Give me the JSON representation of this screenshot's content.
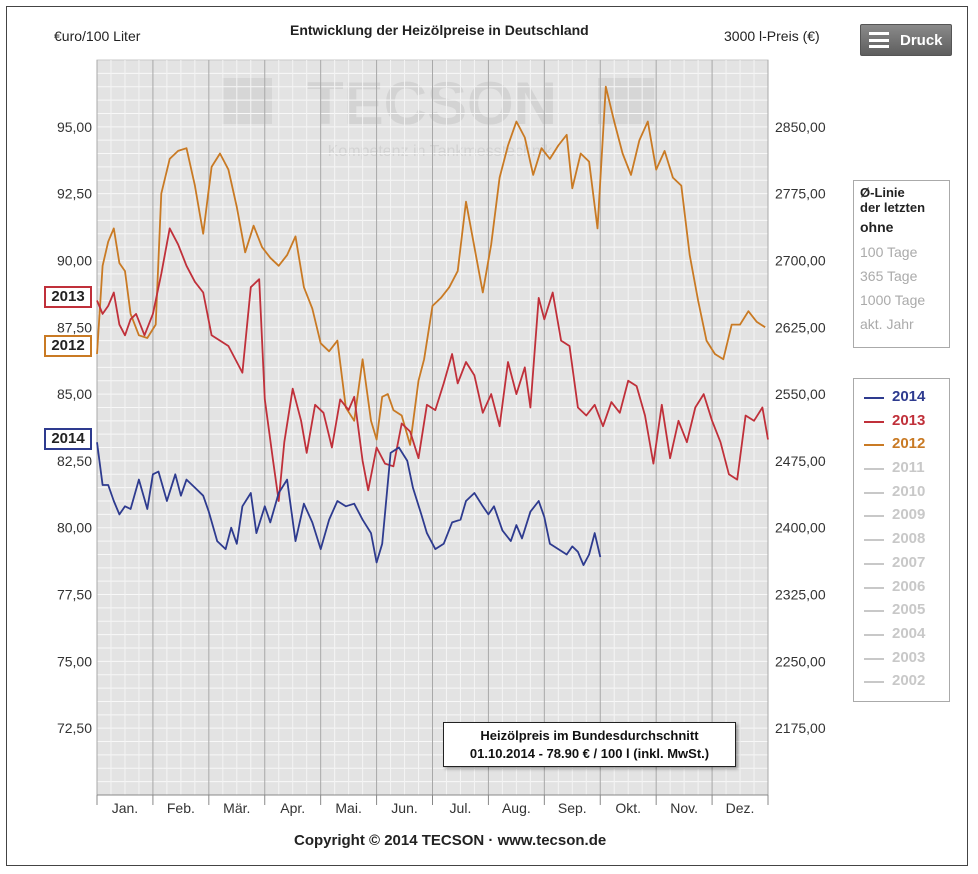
{
  "header": {
    "left_axis_label": "€uro/100 Liter",
    "title": "Entwicklung der Heizölpreise in Deutschland",
    "right_axis_label": "3000 l-Preis (€)",
    "print_button": "Druck"
  },
  "watermark": {
    "logo": "TECSON",
    "tagline": "Kompetenz in Tankmesstechnik"
  },
  "year_markers": {
    "y2013": "2013",
    "y2012": "2012",
    "y2014": "2014"
  },
  "average_panel": {
    "heading_line1": "Ø-Linie",
    "heading_line2": "der letzten",
    "options": [
      "ohne",
      "100 Tage",
      "365 Tage",
      "1000 Tage",
      "akt. Jahr"
    ],
    "selected": "ohne"
  },
  "legend": [
    {
      "year": "2014",
      "color": "#2e3b8f",
      "active": true
    },
    {
      "year": "2013",
      "color": "#c0303a",
      "active": true
    },
    {
      "year": "2012",
      "color": "#c97a24",
      "active": true
    },
    {
      "year": "2011",
      "color": "#c8c8c8",
      "active": false
    },
    {
      "year": "2010",
      "color": "#c8c8c8",
      "active": false
    },
    {
      "year": "2009",
      "color": "#c8c8c8",
      "active": false
    },
    {
      "year": "2008",
      "color": "#c8c8c8",
      "active": false
    },
    {
      "year": "2007",
      "color": "#c8c8c8",
      "active": false
    },
    {
      "year": "2006",
      "color": "#c8c8c8",
      "active": false
    },
    {
      "year": "2005",
      "color": "#c8c8c8",
      "active": false
    },
    {
      "year": "2004",
      "color": "#c8c8c8",
      "active": false
    },
    {
      "year": "2003",
      "color": "#c8c8c8",
      "active": false
    },
    {
      "year": "2002",
      "color": "#c8c8c8",
      "active": false
    }
  ],
  "info_box": {
    "line1": "Heizölpreis im Bundesdurchschnitt",
    "line2": "01.10.2014 - 78.90 € / 100 l (inkl. MwSt.)"
  },
  "footer": {
    "copyright": "Copyright © 2014 TECSON · www.tecson.de"
  },
  "chart_data": {
    "type": "line",
    "title": "Entwicklung der Heizölpreise in Deutschland",
    "ylabel": "€uro/100 Liter",
    "y2label": "3000 l-Preis (€)",
    "ylim": [
      70,
      97.5
    ],
    "y_ticks": [
      72.5,
      75,
      77.5,
      80,
      82.5,
      85,
      87.5,
      90,
      92.5,
      95
    ],
    "y_tick_labels": [
      "72,50",
      "75,00",
      "77,50",
      "80,00",
      "82,50",
      "85,00",
      "87,50",
      "90,00",
      "92,50",
      "95,00"
    ],
    "y2_tick_labels": [
      "2175,00",
      "2250,00",
      "2325,00",
      "2400,00",
      "2475,00",
      "2550,00",
      "2625,00",
      "2700,00",
      "2775,00",
      "2850,00"
    ],
    "categories": [
      "Jan.",
      "Feb.",
      "Mär.",
      "Apr.",
      "Mai.",
      "Jun.",
      "Jul.",
      "Aug.",
      "Sep.",
      "Okt.",
      "Nov.",
      "Dez."
    ],
    "xlim": [
      0,
      12
    ],
    "grid": true,
    "series": [
      {
        "name": "2014",
        "color": "#2e3b8f",
        "x": [
          0,
          0.1,
          0.2,
          0.3,
          0.4,
          0.5,
          0.6,
          0.75,
          0.9,
          1.0,
          1.1,
          1.25,
          1.4,
          1.5,
          1.6,
          1.75,
          1.9,
          2.0,
          2.15,
          2.3,
          2.4,
          2.5,
          2.6,
          2.75,
          2.85,
          3.0,
          3.1,
          3.25,
          3.4,
          3.55,
          3.7,
          3.85,
          4.0,
          4.15,
          4.3,
          4.45,
          4.6,
          4.75,
          4.9,
          5.0,
          5.1,
          5.25,
          5.4,
          5.55,
          5.65,
          5.8,
          5.9,
          6.05,
          6.2,
          6.35,
          6.5,
          6.6,
          6.75,
          6.9,
          7.0,
          7.1,
          7.25,
          7.4,
          7.5,
          7.6,
          7.75,
          7.9,
          8.0,
          8.1,
          8.25,
          8.4,
          8.5,
          8.6,
          8.7,
          8.8,
          8.9,
          9.0
        ],
        "values": [
          83.2,
          81.6,
          81.6,
          81.0,
          80.5,
          80.8,
          80.7,
          81.8,
          80.7,
          82.0,
          82.1,
          81.0,
          82.0,
          81.2,
          81.8,
          81.5,
          81.2,
          80.6,
          79.5,
          79.2,
          80.0,
          79.4,
          80.8,
          81.3,
          79.8,
          80.8,
          80.2,
          81.3,
          81.8,
          79.5,
          80.9,
          80.2,
          79.2,
          80.3,
          81.0,
          80.8,
          80.9,
          80.3,
          79.8,
          78.7,
          79.4,
          82.8,
          83.0,
          82.5,
          81.5,
          80.5,
          79.8,
          79.2,
          79.4,
          80.2,
          80.3,
          81.0,
          81.3,
          80.8,
          80.5,
          80.8,
          79.9,
          79.5,
          80.1,
          79.6,
          80.6,
          81.0,
          80.4,
          79.4,
          79.2,
          79.0,
          79.3,
          79.1,
          78.6,
          79.0,
          79.8,
          78.9
        ]
      },
      {
        "name": "2013",
        "color": "#c0303a",
        "x": [
          0,
          0.1,
          0.2,
          0.3,
          0.4,
          0.5,
          0.6,
          0.7,
          0.85,
          1.0,
          1.15,
          1.3,
          1.45,
          1.6,
          1.75,
          1.9,
          2.05,
          2.2,
          2.35,
          2.5,
          2.6,
          2.75,
          2.9,
          3.0,
          3.15,
          3.25,
          3.35,
          3.5,
          3.65,
          3.75,
          3.9,
          4.05,
          4.2,
          4.35,
          4.5,
          4.6,
          4.75,
          4.85,
          5.0,
          5.15,
          5.3,
          5.45,
          5.6,
          5.75,
          5.9,
          6.05,
          6.2,
          6.35,
          6.45,
          6.6,
          6.75,
          6.9,
          7.05,
          7.2,
          7.35,
          7.5,
          7.65,
          7.75,
          7.9,
          8.0,
          8.15,
          8.3,
          8.45,
          8.6,
          8.75,
          8.9,
          9.05,
          9.2,
          9.35,
          9.5,
          9.65,
          9.8,
          9.95,
          10.1,
          10.25,
          10.4,
          10.55,
          10.7,
          10.85,
          11.0,
          11.15,
          11.3,
          11.45,
          11.6,
          11.75,
          11.9,
          12.0
        ],
        "values": [
          88.5,
          88.0,
          88.3,
          88.8,
          87.6,
          87.2,
          87.8,
          88.0,
          87.2,
          88.0,
          89.5,
          91.2,
          90.6,
          89.8,
          89.2,
          88.8,
          87.2,
          87.0,
          86.8,
          86.2,
          85.8,
          89.0,
          89.3,
          84.8,
          82.5,
          81.0,
          83.2,
          85.2,
          84.0,
          82.8,
          84.6,
          84.3,
          83.0,
          84.8,
          84.4,
          84.9,
          82.5,
          81.4,
          83.0,
          82.4,
          82.3,
          83.9,
          83.6,
          82.6,
          84.6,
          84.4,
          85.4,
          86.5,
          85.4,
          86.2,
          85.7,
          84.3,
          85.0,
          83.8,
          86.2,
          85.0,
          86.0,
          84.5,
          88.6,
          87.8,
          88.8,
          87.0,
          86.8,
          84.5,
          84.2,
          84.6,
          83.8,
          84.7,
          84.3,
          85.5,
          85.3,
          84.2,
          82.4,
          84.6,
          82.6,
          84.0,
          83.2,
          84.5,
          85.0,
          84.0,
          83.2,
          82.0,
          81.8,
          84.2,
          84.0,
          84.5,
          83.3
        ]
      },
      {
        "name": "2012",
        "color": "#c97a24",
        "x": [
          0,
          0.1,
          0.2,
          0.3,
          0.4,
          0.5,
          0.6,
          0.75,
          0.9,
          1.05,
          1.15,
          1.3,
          1.45,
          1.6,
          1.75,
          1.9,
          2.05,
          2.2,
          2.35,
          2.5,
          2.65,
          2.8,
          2.95,
          3.1,
          3.25,
          3.4,
          3.55,
          3.7,
          3.85,
          4.0,
          4.15,
          4.3,
          4.45,
          4.6,
          4.75,
          4.9,
          5.0,
          5.1,
          5.2,
          5.3,
          5.45,
          5.6,
          5.75,
          5.85,
          6.0,
          6.15,
          6.3,
          6.45,
          6.6,
          6.75,
          6.9,
          7.05,
          7.2,
          7.35,
          7.5,
          7.65,
          7.8,
          7.95,
          8.1,
          8.25,
          8.4,
          8.5,
          8.65,
          8.8,
          8.95,
          9.1,
          9.25,
          9.4,
          9.55,
          9.7,
          9.85,
          10.0,
          10.15,
          10.3,
          10.45,
          10.6,
          10.75,
          10.9,
          11.05,
          11.2,
          11.35,
          11.5,
          11.65,
          11.8,
          11.95
        ],
        "values": [
          86.5,
          89.8,
          90.7,
          91.2,
          89.9,
          89.6,
          88.0,
          87.2,
          87.1,
          87.6,
          92.5,
          93.8,
          94.1,
          94.2,
          92.8,
          91.0,
          93.5,
          94.0,
          93.4,
          92.0,
          90.3,
          91.3,
          90.5,
          90.1,
          89.8,
          90.2,
          90.9,
          89.0,
          88.2,
          86.9,
          86.6,
          87.0,
          84.5,
          84.0,
          86.3,
          84.0,
          83.3,
          84.9,
          85.0,
          84.4,
          84.2,
          83.1,
          85.5,
          86.3,
          88.3,
          88.6,
          89.0,
          89.6,
          92.2,
          90.5,
          88.8,
          90.6,
          93.1,
          94.3,
          95.2,
          94.6,
          93.2,
          94.2,
          93.8,
          94.3,
          94.7,
          92.7,
          94.0,
          93.7,
          91.2,
          96.5,
          95.2,
          94.0,
          93.2,
          94.5,
          95.2,
          93.4,
          94.1,
          93.1,
          92.8,
          90.2,
          88.5,
          87.0,
          86.5,
          86.3,
          87.6,
          87.6,
          88.1,
          87.7,
          87.5
        ]
      }
    ]
  }
}
